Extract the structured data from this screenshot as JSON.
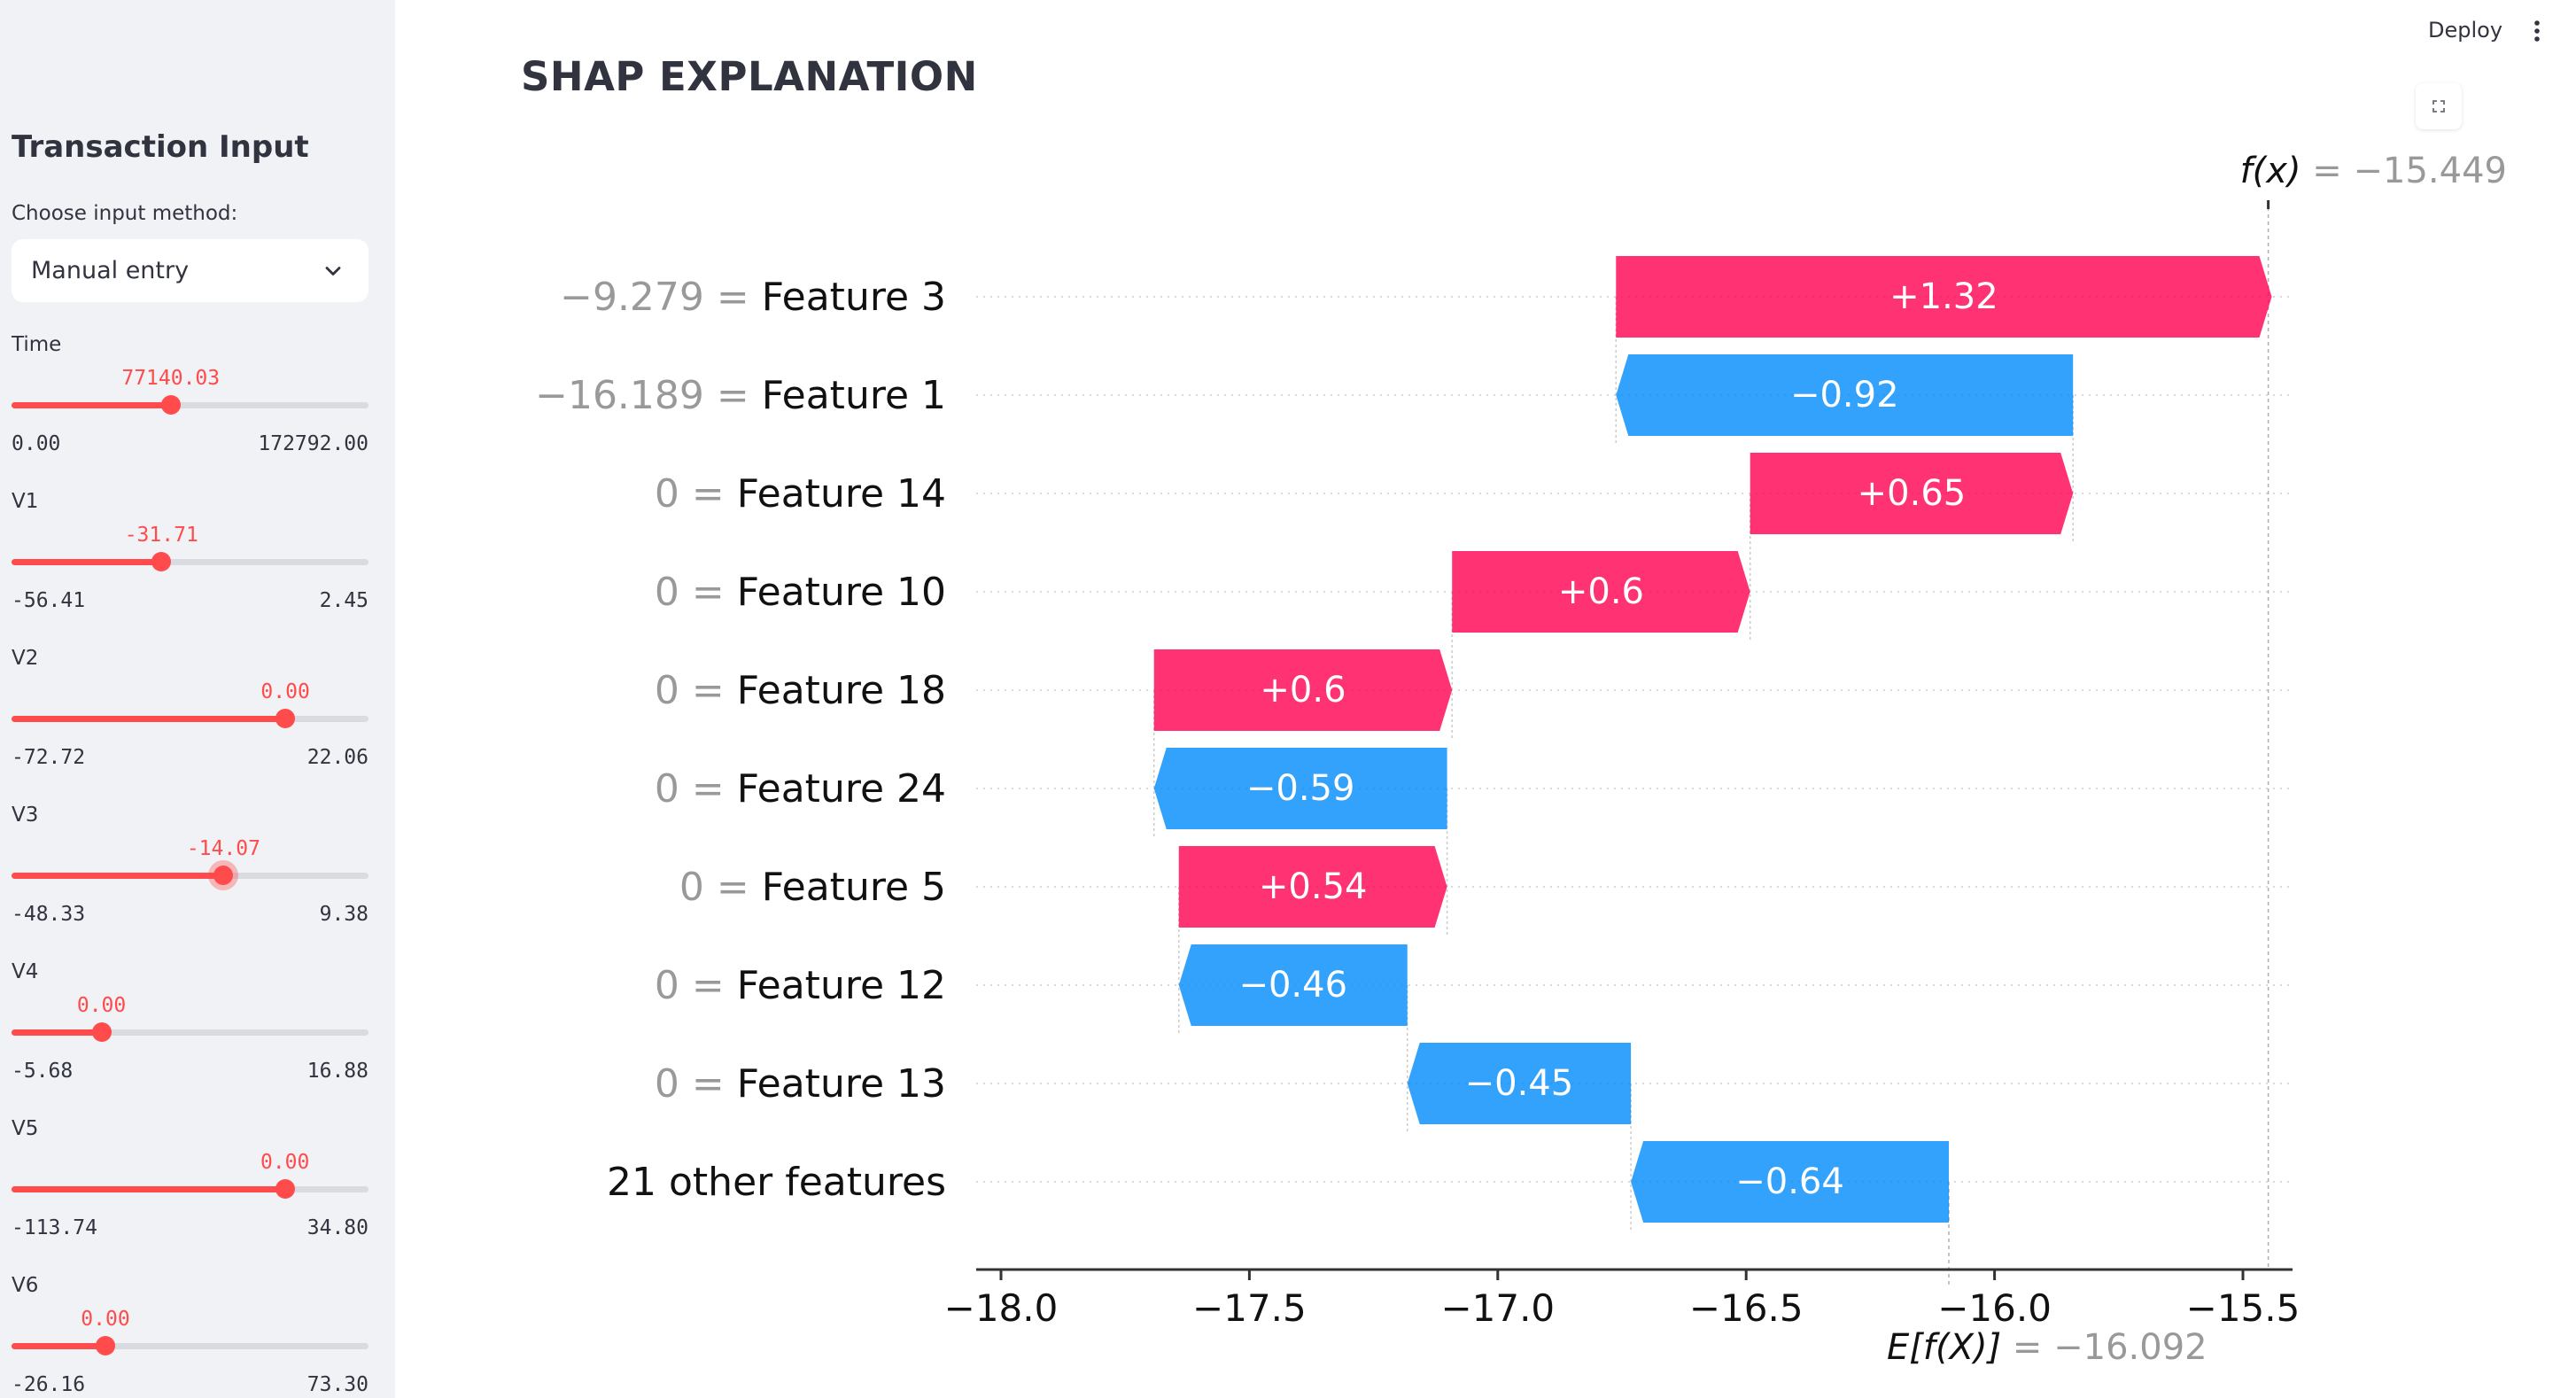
{
  "sidebar": {
    "title": "Transaction Input",
    "method_label": "Choose input method:",
    "method_value": "Manual entry",
    "sliders": [
      {
        "label": "Time",
        "value": "77140.03",
        "min": "0.00",
        "max": "172792.00",
        "fraction": 0.446,
        "focused": false
      },
      {
        "label": "V1",
        "value": "-31.71",
        "min": "-56.41",
        "max": "2.45",
        "fraction": 0.42,
        "focused": false
      },
      {
        "label": "V2",
        "value": "0.00",
        "min": "-72.72",
        "max": "22.06",
        "fraction": 0.767,
        "focused": false
      },
      {
        "label": "V3",
        "value": "-14.07",
        "min": "-48.33",
        "max": "9.38",
        "fraction": 0.594,
        "focused": true
      },
      {
        "label": "V4",
        "value": "0.00",
        "min": "-5.68",
        "max": "16.88",
        "fraction": 0.252,
        "focused": false
      },
      {
        "label": "V5",
        "value": "0.00",
        "min": "-113.74",
        "max": "34.80",
        "fraction": 0.766,
        "focused": false
      },
      {
        "label": "V6",
        "value": "0.00",
        "min": "-26.16",
        "max": "73.30",
        "fraction": 0.263,
        "focused": false
      }
    ]
  },
  "header": {
    "deploy_label": "Deploy",
    "menu_icon": "vertical-ellipsis-icon"
  },
  "main": {
    "title": "SHAP EXPLANATION",
    "fullscreen_icon": "fullscreen-icon"
  },
  "chart_data": {
    "type": "waterfall",
    "fx_label": "f(x)",
    "fx_value": "= −15.449",
    "efx_label": "E[f(X)]",
    "efx_value": "= −16.092",
    "fx": -15.449,
    "base": -16.092,
    "xlim": [
      -18.05,
      -15.4
    ],
    "xticks": [
      -18.0,
      -17.5,
      -17.0,
      -16.5,
      -16.0,
      -15.5
    ],
    "xtick_labels": [
      "−18.0",
      "−17.5",
      "−17.0",
      "−16.5",
      "−16.0",
      "−15.5"
    ],
    "bars": [
      {
        "feature_value": "−9.279",
        "eq": "=",
        "feature": "Feature 3",
        "shap": 1.32,
        "text": "+1.32"
      },
      {
        "feature_value": "−16.189",
        "eq": "=",
        "feature": "Feature 1",
        "shap": -0.92,
        "text": "−0.92"
      },
      {
        "feature_value": "0",
        "eq": "=",
        "feature": "Feature 14",
        "shap": 0.65,
        "text": "+0.65"
      },
      {
        "feature_value": "0",
        "eq": "=",
        "feature": "Feature 10",
        "shap": 0.6,
        "text": "+0.6"
      },
      {
        "feature_value": "0",
        "eq": "=",
        "feature": "Feature 18",
        "shap": 0.6,
        "text": "+0.6"
      },
      {
        "feature_value": "0",
        "eq": "=",
        "feature": "Feature 24",
        "shap": -0.59,
        "text": "−0.59"
      },
      {
        "feature_value": "0",
        "eq": "=",
        "feature": "Feature 5",
        "shap": 0.54,
        "text": "+0.54"
      },
      {
        "feature_value": "0",
        "eq": "=",
        "feature": "Feature 12",
        "shap": -0.46,
        "text": "−0.46"
      },
      {
        "feature_value": "0",
        "eq": "=",
        "feature": "Feature 13",
        "shap": -0.45,
        "text": "−0.45"
      },
      {
        "feature_value": "",
        "eq": "",
        "feature": "21 other features",
        "shap": -0.64,
        "text": "−0.64"
      }
    ],
    "colors": {
      "positive": "#ff0051",
      "negative": "#008bfb",
      "axis": "#333333",
      "grid": "#cccccc",
      "muted": "#999999"
    }
  }
}
